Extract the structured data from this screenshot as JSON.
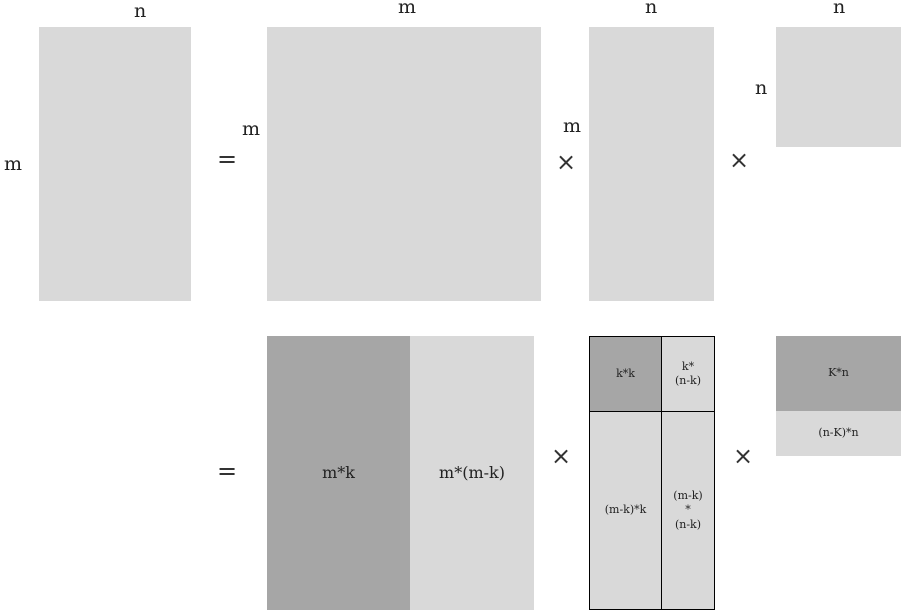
{
  "row1": {
    "A": {
      "top_label": "n",
      "left_label": "m"
    },
    "eq": "=",
    "U": {
      "top_label": "m",
      "left_label": "m"
    },
    "times1": "×",
    "S": {
      "top_label": "n",
      "left_label": "m"
    },
    "times2": "×",
    "V": {
      "top_label": "n",
      "left_label": "n"
    }
  },
  "row2": {
    "eq": "=",
    "U": {
      "left_block": "m*k",
      "right_block": "m*(m-k)"
    },
    "times1": "×",
    "S": {
      "top_left": "k*k",
      "top_right": [
        "k*",
        "(n-k)"
      ],
      "bottom_left": "(m-k)*k",
      "bottom_right": [
        "(m-k)",
        "*",
        "(n-k)"
      ]
    },
    "times2": "×",
    "V": {
      "top_block": "K*n",
      "bottom_block": "(n-K)*n"
    }
  },
  "colors": {
    "light": "#d9d9d9",
    "dark": "#a6a6a6",
    "border": "#000000"
  }
}
